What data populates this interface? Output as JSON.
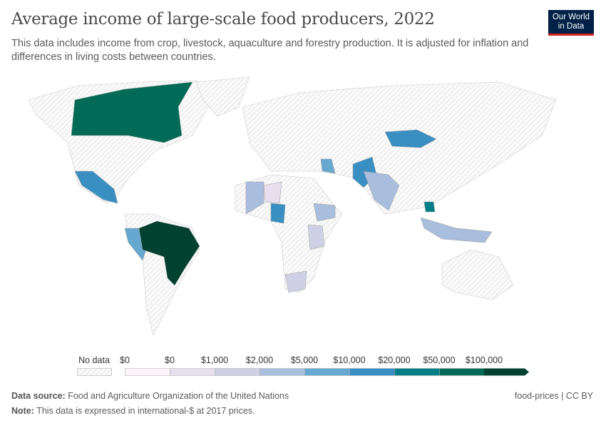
{
  "title": "Average income of large-scale food producers, 2022",
  "subtitle": "This data includes income from crop, livestock, aquaculture and forestry production. It is adjusted for inflation and differences in living costs between countries.",
  "logo": {
    "line1": "Our World",
    "line2": "in Data"
  },
  "legend": {
    "no_data": "No data",
    "labels": [
      "$0",
      "$0",
      "$1,000",
      "$2,000",
      "$5,000",
      "$10,000",
      "$20,000",
      "$50,000",
      "$100,000"
    ],
    "colors": [
      "#fcf3f8",
      "#e8dfee",
      "#cfd0e5",
      "#a9bddc",
      "#67a8d0",
      "#3a8fc2",
      "#017e87",
      "#016b57",
      "#00412f"
    ]
  },
  "footer": {
    "source_label": "Data source:",
    "source": "Food and Agriculture Organization of the United Nations",
    "note_label": "Note:",
    "note": "This data is expressed in international-$ at 2017 prices.",
    "license": "food-prices | CC BY"
  }
}
